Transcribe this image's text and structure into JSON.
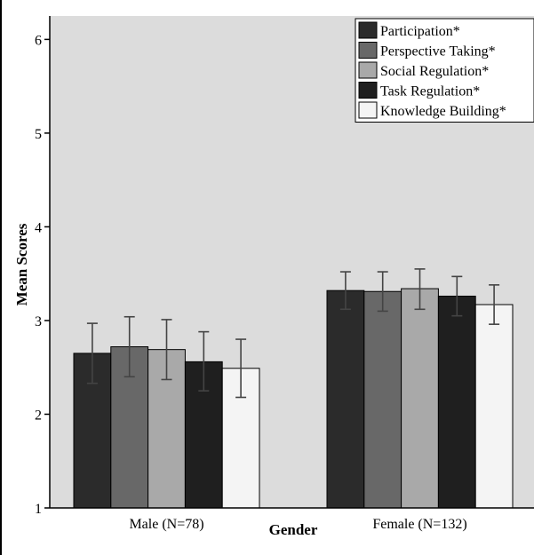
{
  "chart_data": {
    "type": "bar",
    "title": "",
    "xlabel": "Gender",
    "ylabel": "Mean Scores",
    "ylim": [
      1,
      6.25
    ],
    "yticks": [
      1,
      2,
      3,
      4,
      5,
      6
    ],
    "grid": false,
    "legend_position": "top-right",
    "categories": [
      "Male (N=78)",
      "Female (N=132)"
    ],
    "series": [
      {
        "name": "Participation*",
        "color": "#2b2b2b",
        "values": [
          2.65,
          3.32
        ],
        "err_low": [
          2.33,
          3.12
        ],
        "err_high": [
          2.97,
          3.52
        ]
      },
      {
        "name": "Perspective Taking*",
        "color": "#686868",
        "values": [
          2.72,
          3.31
        ],
        "err_low": [
          2.4,
          3.1
        ],
        "err_high": [
          3.04,
          3.52
        ]
      },
      {
        "name": "Social Regulation*",
        "color": "#a9a9a9",
        "values": [
          2.69,
          3.34
        ],
        "err_low": [
          2.37,
          3.12
        ],
        "err_high": [
          3.01,
          3.55
        ]
      },
      {
        "name": "Task Regulation*",
        "color": "#1f1f1f",
        "values": [
          2.56,
          3.26
        ],
        "err_low": [
          2.25,
          3.05
        ],
        "err_high": [
          2.88,
          3.47
        ]
      },
      {
        "name": "Knowledge Building*",
        "color": "#f4f4f4",
        "values": [
          2.49,
          3.17
        ],
        "err_low": [
          2.18,
          2.96
        ],
        "err_high": [
          2.8,
          3.38
        ]
      }
    ],
    "colors": {
      "plot_background": "#dcdcdc",
      "axis": "#000000",
      "error_bar": "#444444"
    }
  }
}
